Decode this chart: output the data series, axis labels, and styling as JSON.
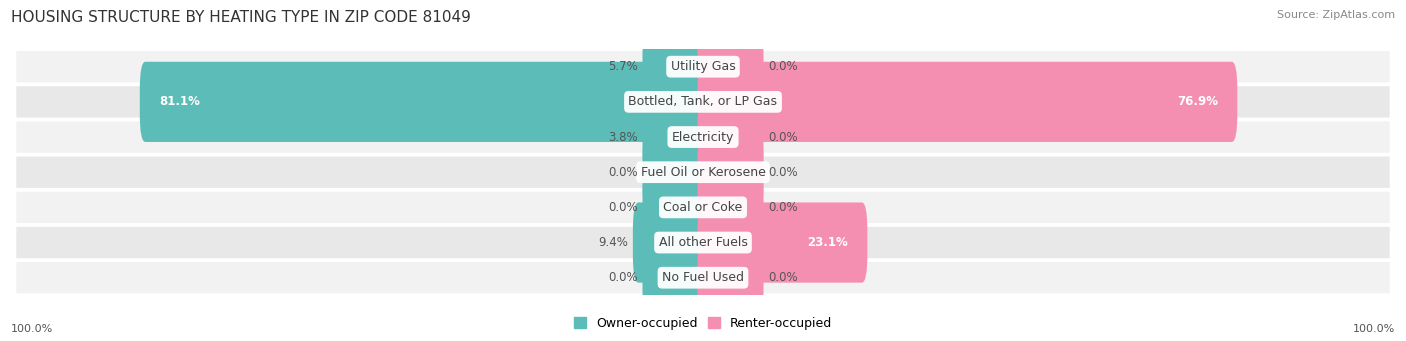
{
  "title": "HOUSING STRUCTURE BY HEATING TYPE IN ZIP CODE 81049",
  "source": "Source: ZipAtlas.com",
  "categories": [
    "Utility Gas",
    "Bottled, Tank, or LP Gas",
    "Electricity",
    "Fuel Oil or Kerosene",
    "Coal or Coke",
    "All other Fuels",
    "No Fuel Used"
  ],
  "owner_values": [
    5.7,
    81.1,
    3.8,
    0.0,
    0.0,
    9.4,
    0.0
  ],
  "renter_values": [
    0.0,
    76.9,
    0.0,
    0.0,
    0.0,
    23.1,
    0.0
  ],
  "owner_color": "#5bbcb8",
  "renter_color": "#f48fb1",
  "owner_label": "Owner-occupied",
  "renter_label": "Renter-occupied",
  "row_bg_light": "#f2f2f2",
  "row_bg_dark": "#e8e8e8",
  "max_value": 100.0,
  "min_bar_width": 8.0,
  "title_fontsize": 11,
  "cat_fontsize": 9,
  "val_fontsize": 8.5,
  "source_fontsize": 8,
  "axis_tick_fontsize": 8
}
